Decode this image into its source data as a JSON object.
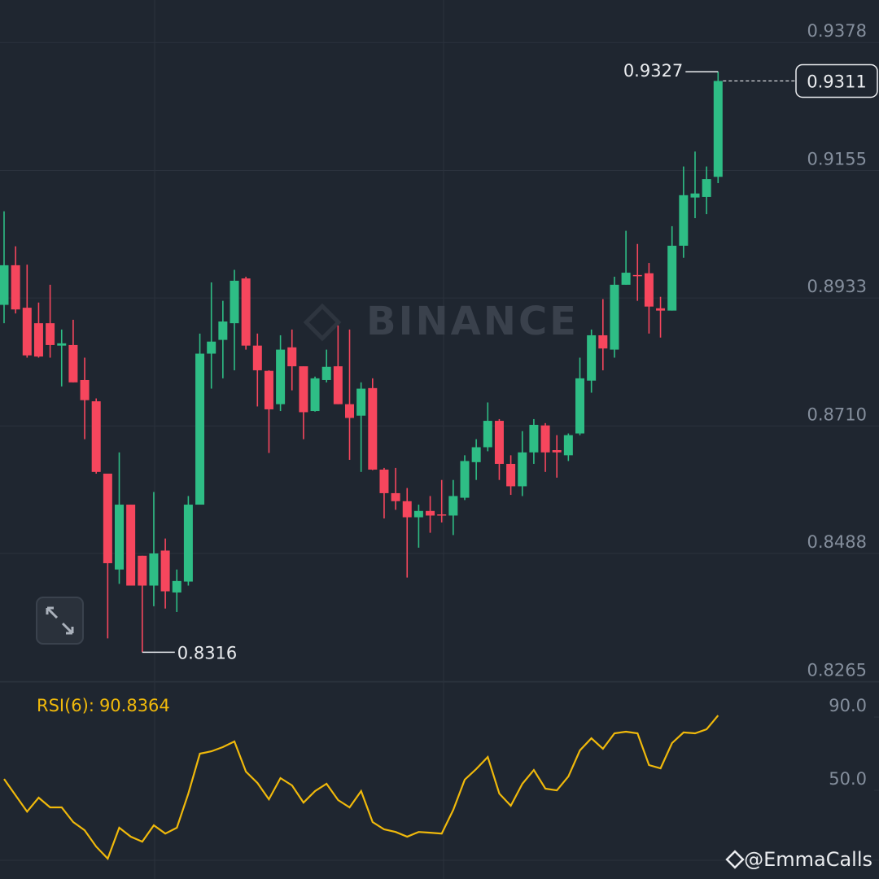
{
  "chart_data": {
    "type": "candlestick",
    "watermark": "BINANCE",
    "credit": "@EmmaCalls",
    "up_color": "#2ebd85",
    "down_color": "#f6465d",
    "grid": true,
    "ylim": [
      0.8264,
      0.9452
    ],
    "yticks": [
      0.9378,
      0.9155,
      0.8933,
      {
        "value": 0.871,
        "label": "0.8710"
      },
      0.8488,
      0.8265
    ],
    "open": [
      0.8921,
      0.899,
      0.8916,
      0.8889,
      0.8889,
      0.885,
      0.8851,
      0.879,
      0.8753,
      0.8627,
      0.846,
      0.8573,
      0.8484,
      0.8432,
      0.8493,
      0.842,
      0.8439,
      0.8573,
      0.8836,
      0.886,
      0.8889,
      0.8967,
      0.885,
      0.8806,
      0.8748,
      0.8847,
      0.8814,
      0.8736,
      0.879,
      0.8814,
      0.8748,
      0.8728,
      0.8776,
      0.8634,
      0.8593,
      0.8579,
      0.8551,
      0.8562,
      0.8556,
      0.8554,
      0.8585,
      0.8647,
      0.8673,
      0.8719,
      0.8644,
      0.8605,
      0.8664,
      0.8711,
      0.8668,
      0.8659,
      0.8697,
      0.8789,
      0.8868,
      0.8843,
      0.8956,
      0.8973,
      0.8976,
      0.8915,
      0.8911,
      0.9024,
      0.9108,
      0.9109,
      0.9144
    ],
    "high": [
      0.9084,
      0.9023,
      0.8991,
      0.8925,
      0.8956,
      0.8878,
      0.8895,
      0.8829,
      0.8758,
      0.8627,
      0.8664,
      0.8573,
      0.8484,
      0.8595,
      0.8514,
      0.846,
      0.8588,
      0.8871,
      0.896,
      0.8928,
      0.8982,
      0.897,
      0.8871,
      0.8807,
      0.8868,
      0.8878,
      0.8814,
      0.8796,
      0.8843,
      0.8885,
      0.8878,
      0.8786,
      0.8793,
      0.8637,
      0.8637,
      0.8602,
      0.8573,
      0.8588,
      0.8616,
      0.8616,
      0.8659,
      0.8687,
      0.8751,
      0.8722,
      0.8659,
      0.8701,
      0.8722,
      0.8715,
      0.8694,
      0.8697,
      0.8829,
      0.8878,
      0.8931,
      0.897,
      0.905,
      0.9027,
      0.8994,
      0.8935,
      0.9058,
      0.9162,
      0.9188,
      0.9162,
      0.9327
    ],
    "low": [
      0.8889,
      0.8906,
      0.8829,
      0.8829,
      0.8829,
      0.8779,
      0.8786,
      0.8687,
      0.8627,
      0.834,
      0.8435,
      0.8432,
      0.8316,
      0.8396,
      0.8392,
      0.8386,
      0.8432,
      0.8573,
      0.8775,
      0.8793,
      0.8807,
      0.8843,
      0.8744,
      0.8663,
      0.8736,
      0.8772,
      0.8687,
      0.8735,
      0.8786,
      0.8748,
      0.8651,
      0.863,
      0.8633,
      0.8549,
      0.8564,
      0.8446,
      0.8498,
      0.8524,
      0.8542,
      0.852,
      0.8581,
      0.8616,
      0.8666,
      0.8616,
      0.859,
      0.8588,
      0.8644,
      0.863,
      0.862,
      0.8649,
      0.8694,
      0.8768,
      0.8807,
      0.8829,
      0.8956,
      0.8928,
      0.8871,
      0.8864,
      0.8911,
      0.9003,
      0.9072,
      0.9079,
      0.9133
    ],
    "close": [
      0.899,
      0.8913,
      0.8833,
      0.8831,
      0.8851,
      0.8854,
      0.8786,
      0.8755,
      0.863,
      0.8471,
      0.8573,
      0.8432,
      0.8432,
      0.8488,
      0.8422,
      0.844,
      0.8573,
      0.8836,
      0.8857,
      0.8892,
      0.8963,
      0.885,
      0.8807,
      0.8739,
      0.8843,
      0.8814,
      0.8734,
      0.8793,
      0.8813,
      0.8748,
      0.8724,
      0.8775,
      0.8634,
      0.8593,
      0.8579,
      0.8551,
      0.8562,
      0.8554,
      0.8554,
      0.8588,
      0.8649,
      0.8673,
      0.8719,
      0.8644,
      0.8605,
      0.8664,
      0.8712,
      0.8664,
      0.8664,
      0.8694,
      0.8793,
      0.8868,
      0.8845,
      0.8956,
      0.8977,
      0.8972,
      0.8918,
      0.8911,
      0.9024,
      0.9112,
      0.9115,
      0.914,
      0.9311
    ],
    "rsi": {
      "name": "RSI(6):",
      "color": "#f0b90b",
      "ylim": [
        1.6,
        106
      ],
      "yticks": [
        {
          "value": 90,
          "label": "90.0"
        },
        {
          "value": 50,
          "label": "50.0"
        }
      ],
      "values": [
        56.2,
        47.3,
        38.4,
        46.0,
        40.7,
        40.7,
        32.7,
        28.2,
        19.3,
        12.7,
        29.6,
        24.7,
        22.0,
        30.9,
        26.4,
        29.6,
        48.2,
        70.0,
        71.3,
        73.6,
        76.7,
        60.2,
        54.0,
        45.1,
        56.7,
        52.7,
        43.3,
        49.6,
        53.6,
        44.7,
        40.7,
        49.6,
        32.7,
        28.7,
        27.3,
        24.7,
        27.3,
        26.9,
        26.4,
        39.3,
        55.8,
        61.6,
        68.2,
        48.2,
        41.6,
        53.6,
        61.1,
        50.9,
        50.0,
        57.6,
        71.8,
        78.4,
        72.7,
        81.1,
        82.0,
        81.1,
        63.8,
        62.0,
        75.8,
        81.6,
        81.1,
        83.3,
        90.8364
      ]
    }
  }
}
